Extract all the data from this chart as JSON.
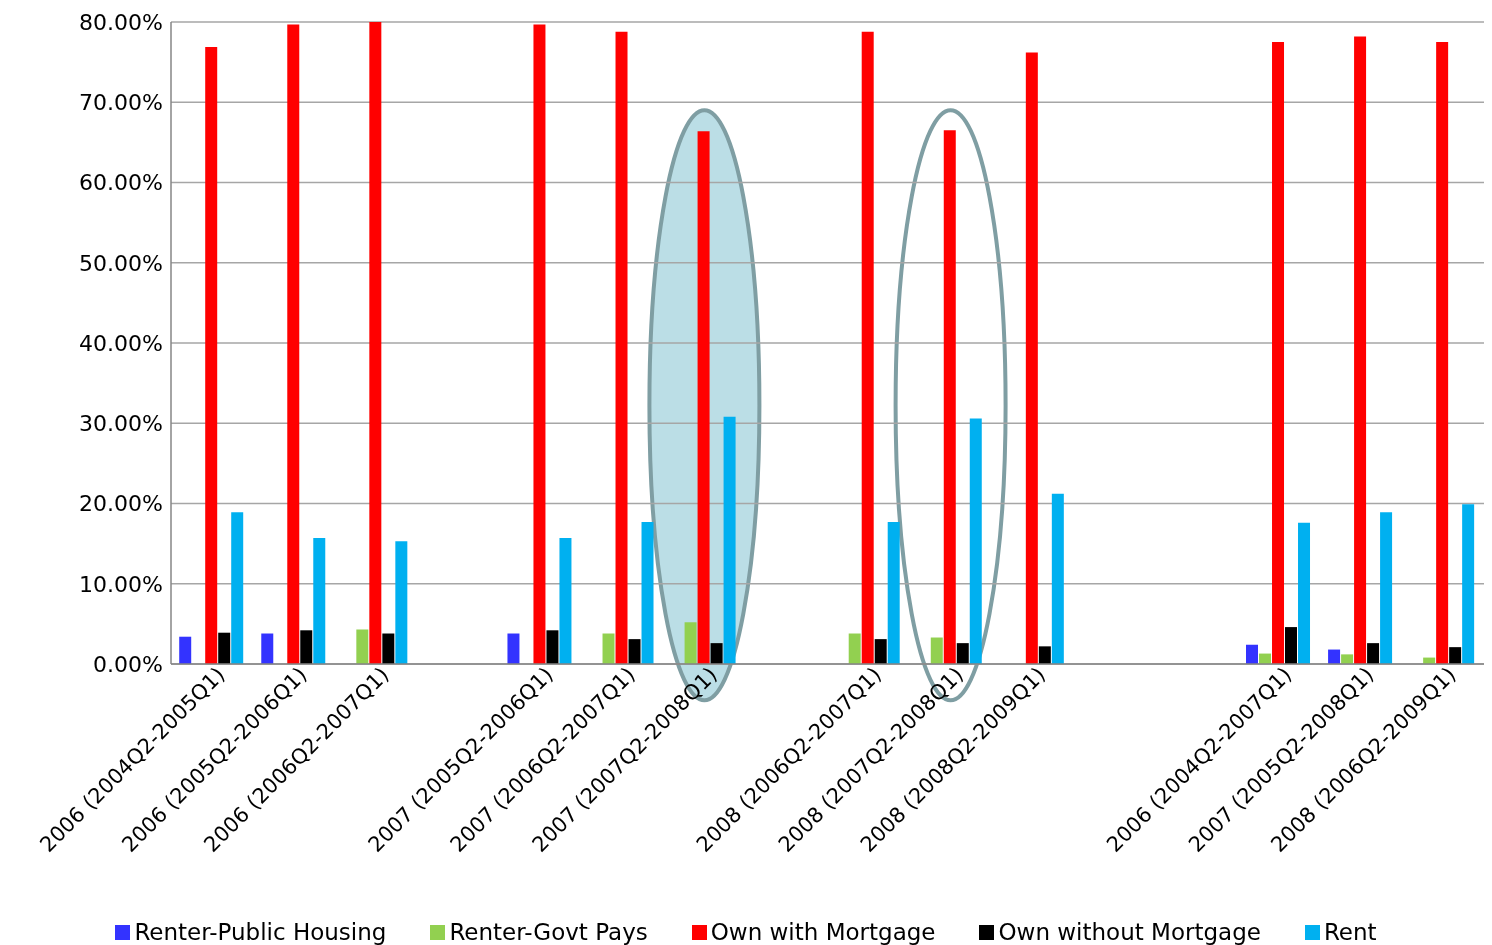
{
  "chart_data": {
    "type": "bar",
    "categories": [
      "2006 (2004Q2-2005Q1)",
      "2006 (2005Q2-2006Q1)",
      "2006 (2006Q2-2007Q1)",
      null,
      "2007 (2005Q2-2006Q1)",
      "2007 (2006Q2-2007Q1)",
      "2007 (2007Q2-2008Q1)",
      null,
      "2008 (2006Q2-2007Q1)",
      "2008 (2007Q2-2008Q1)",
      "2008 (2008Q2-2009Q1)",
      null,
      null,
      "2006 (2004Q2-2007Q1)",
      "2007 (2005Q2-2008Q1)",
      "2008 (2006Q2-2009Q1)"
    ],
    "series": [
      {
        "name": "Renter-Public Housing",
        "color": "#3333ff",
        "values": [
          3.4,
          3.8,
          null,
          null,
          3.8,
          null,
          null,
          null,
          null,
          null,
          null,
          null,
          null,
          2.4,
          1.8,
          null
        ]
      },
      {
        "name": "Renter-Govt Pays",
        "color": "#92d050",
        "values": [
          null,
          null,
          4.3,
          null,
          null,
          3.8,
          5.2,
          null,
          3.8,
          3.3,
          null,
          null,
          null,
          1.3,
          1.2,
          0.8
        ]
      },
      {
        "name": "Own with Mortgage",
        "color": "#ff0000",
        "values": [
          76.9,
          79.7,
          80.0,
          null,
          79.7,
          78.8,
          66.4,
          null,
          78.8,
          66.5,
          76.2,
          null,
          null,
          77.5,
          78.2,
          77.5
        ]
      },
      {
        "name": "Own without Mortgage",
        "color": "#000000",
        "values": [
          3.9,
          4.2,
          3.8,
          null,
          4.2,
          3.1,
          2.6,
          null,
          3.1,
          2.6,
          2.2,
          null,
          null,
          4.6,
          2.6,
          2.1
        ]
      },
      {
        "name": "Rent",
        "color": "#00b0f0",
        "values": [
          18.9,
          15.7,
          15.3,
          null,
          15.7,
          17.7,
          30.8,
          null,
          17.7,
          30.6,
          21.2,
          null,
          null,
          17.6,
          18.9,
          19.9
        ]
      }
    ],
    "ylim": [
      0,
      80
    ],
    "yticks": [
      {
        "value": 0,
        "label": "0.00%"
      },
      {
        "value": 10,
        "label": "10.00%"
      },
      {
        "value": 20,
        "label": "20.00%"
      },
      {
        "value": 30,
        "label": "30.00%"
      },
      {
        "value": 40,
        "label": "40.00%"
      },
      {
        "value": 50,
        "label": "50.00%"
      },
      {
        "value": 60,
        "label": "60.00%"
      },
      {
        "value": 70,
        "label": "70.00%"
      },
      {
        "value": 80,
        "label": "80.00%"
      }
    ],
    "grid": "y",
    "legend": "bottom"
  }
}
